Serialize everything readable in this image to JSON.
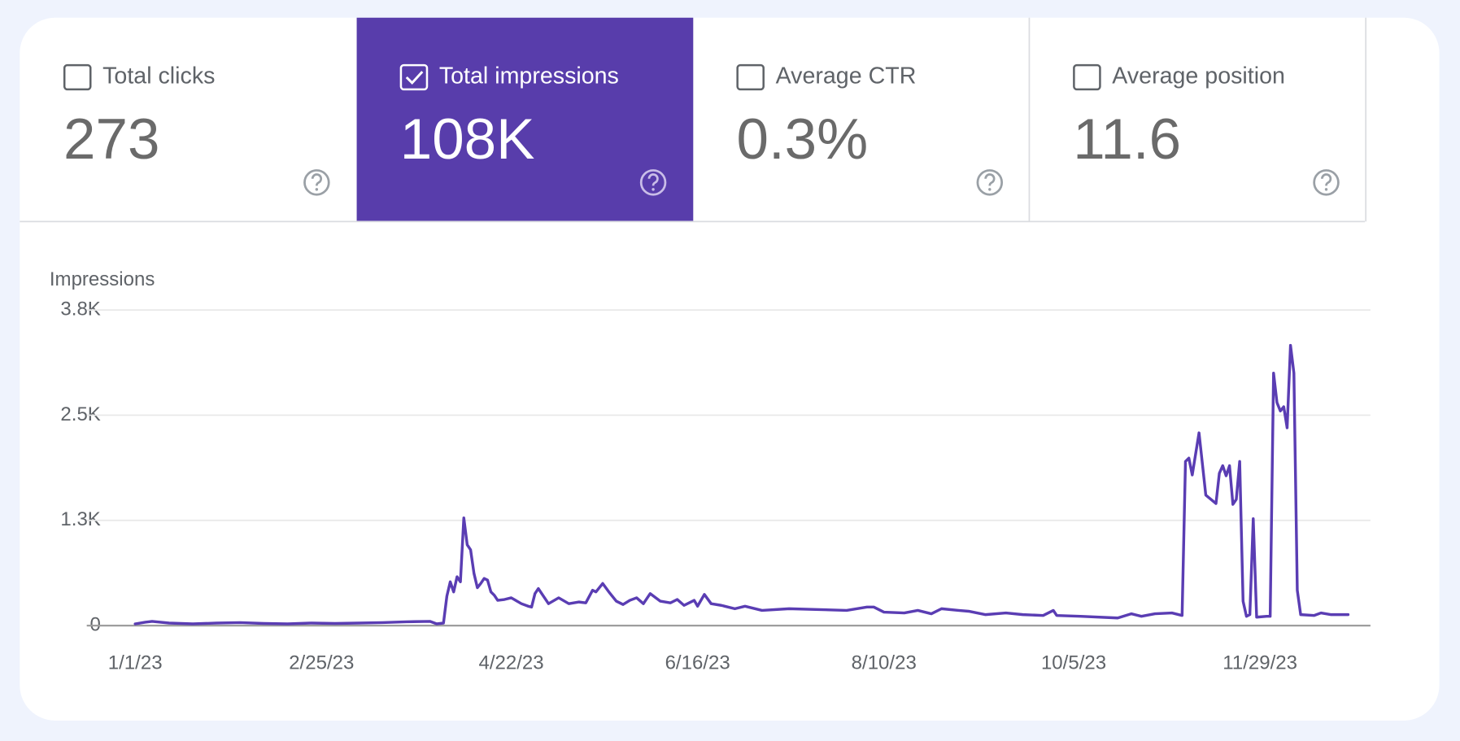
{
  "tabs": [
    {
      "label": "Total clicks",
      "value": "273"
    },
    {
      "label": "Total impressions",
      "value": "108K"
    },
    {
      "label": "Average CTR",
      "value": "0.3%"
    },
    {
      "label": "Average position",
      "value": "11.6"
    }
  ],
  "selected_tab": 1,
  "chart_data": {
    "type": "line",
    "y_label": "Impressions",
    "color": "#5a3db3",
    "grid": true,
    "ylim": [
      0,
      3750
    ],
    "yticks": [
      0,
      {
        "value": 1250,
        "label": "1.3K"
      },
      {
        "value": 2500,
        "label": "2.5K"
      },
      {
        "value": 3750,
        "label": "3.8K"
      }
    ],
    "xticks": [
      "1/1/23",
      "2/25/23",
      "4/22/23",
      "6/16/23",
      "8/10/23",
      "10/5/23",
      "11/29/23"
    ],
    "x": [
      "1/1/23",
      "1/4/23",
      "1/6/23",
      "1/11/23",
      "1/18/23",
      "1/25/23",
      "2/1/23",
      "2/8/23",
      "2/15/23",
      "2/22/23",
      "3/1/23",
      "3/8/23",
      "3/15/23",
      "3/22/23",
      "3/29/23",
      "3/31/23",
      "4/2/23",
      "4/3/23",
      "4/4/23",
      "4/5/23",
      "4/6/23",
      "4/7/23",
      "4/8/23",
      "4/9/23",
      "4/10/23",
      "4/11/23",
      "4/12/23",
      "4/13/23",
      "4/14/23",
      "4/15/23",
      "4/16/23",
      "4/17/23",
      "4/18/23",
      "4/20/23",
      "4/22/23",
      "4/25/23",
      "4/27/23",
      "4/28/23",
      "4/29/23",
      "4/30/23",
      "5/1/23",
      "5/3/23",
      "5/6/23",
      "5/9/23",
      "5/12/23",
      "5/14/23",
      "5/16/23",
      "5/17/23",
      "5/19/23",
      "5/21/23",
      "5/23/23",
      "5/25/23",
      "5/27/23",
      "5/29/23",
      "5/31/23",
      "6/2/23",
      "6/5/23",
      "6/8/23",
      "6/10/23",
      "6/12/23",
      "6/15/23",
      "6/16/23",
      "6/18/23",
      "6/20/23",
      "6/23/23",
      "6/27/23",
      "6/30/23",
      "7/5/23",
      "7/13/23",
      "7/22/23",
      "7/30/23",
      "8/5/23",
      "8/7/23",
      "8/10/23",
      "8/16/23",
      "8/20/23",
      "8/24/23",
      "8/27/23",
      "9/1/23",
      "9/4/23",
      "9/9/23",
      "9/15/23",
      "9/20/23",
      "9/26/23",
      "9/29/23",
      "9/30/23",
      "10/7/23",
      "10/18/23",
      "10/22/23",
      "10/25/23",
      "10/29/23",
      "11/3/23",
      "11/6/23",
      "11/7/23",
      "11/8/23",
      "11/9/23",
      "11/11/23",
      "11/13/23",
      "11/16/23",
      "11/17/23",
      "11/18/23",
      "11/19/23",
      "11/20/23",
      "11/21/23",
      "11/22/23",
      "11/23/23",
      "11/24/23",
      "11/25/23",
      "11/26/23",
      "11/27/23",
      "11/28/23",
      "12/1/23",
      "12/2/23",
      "12/3/23",
      "12/4/23",
      "12/5/23",
      "12/6/23",
      "12/7/23",
      "12/8/23",
      "12/9/23",
      "12/10/23",
      "12/11/23",
      "12/15/23",
      "12/17/23",
      "12/20/23",
      "12/23/23",
      "12/25/23"
    ],
    "values": [
      20,
      40,
      50,
      30,
      20,
      30,
      35,
      25,
      20,
      30,
      25,
      30,
      35,
      45,
      50,
      20,
      30,
      350,
      520,
      400,
      580,
      520,
      1280,
      960,
      900,
      620,
      450,
      500,
      560,
      540,
      400,
      360,
      300,
      310,
      330,
      260,
      230,
      220,
      380,
      440,
      380,
      260,
      330,
      260,
      280,
      270,
      420,
      400,
      500,
      390,
      290,
      250,
      300,
      330,
      260,
      380,
      290,
      270,
      310,
      240,
      300,
      230,
      370,
      260,
      240,
      200,
      230,
      180,
      200,
      190,
      180,
      220,
      220,
      160,
      150,
      180,
      140,
      200,
      180,
      170,
      130,
      150,
      130,
      120,
      180,
      120,
      110,
      90,
      140,
      110,
      140,
      150,
      120,
      1950,
      1990,
      1790,
      2290,
      1550,
      1450,
      1810,
      1900,
      1780,
      1900,
      1440,
      1500,
      1950,
      290,
      110,
      130,
      1270,
      100,
      110,
      110,
      3000,
      2650,
      2550,
      2600,
      2350,
      3330,
      3000,
      420,
      130,
      120,
      150,
      130,
      130,
      130
    ]
  }
}
